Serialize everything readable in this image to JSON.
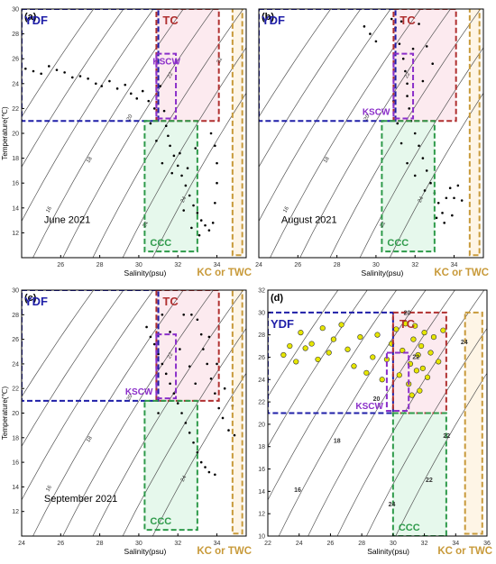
{
  "colors": {
    "ydf": "#1f1fa8",
    "tc": "#b03030",
    "tc_fill": "#fbe3ea",
    "kscw": "#8b2fc9",
    "ccc": "#2e9a4a",
    "ccc_fill": "#ddf5e6",
    "kc": "#c89a3a",
    "kc_fill": "#fdf1dd",
    "points": "#000000",
    "points_d": "#e6e600",
    "isopycnal": "#555555"
  },
  "chart_data": [
    {
      "panel": "(a)",
      "type": "scatter",
      "annotation": "June 2021",
      "xlabel": "Salinity(psu)",
      "ylabel": "Temperature(℃)",
      "xlim": [
        24,
        35.5
      ],
      "ylim": [
        10,
        30
      ],
      "xticks": [
        "26",
        "28",
        "30",
        "32",
        "34"
      ],
      "yticks": [
        "12",
        "14",
        "16",
        "18",
        "20",
        "22",
        "24",
        "26",
        "28",
        "30"
      ],
      "isopycnal_labels": [
        "16",
        "18",
        "20",
        "22",
        "24",
        "24",
        "22"
      ],
      "water_masses": [
        "YDF",
        "TC",
        "KSCW",
        "CCC",
        "KC or TWC"
      ],
      "points_description_values": [
        [
          24.2,
          25.2
        ],
        [
          24.6,
          25.0
        ],
        [
          25.0,
          24.8
        ],
        [
          25.4,
          25.4
        ],
        [
          25.8,
          25.1
        ],
        [
          26.2,
          24.9
        ],
        [
          26.6,
          24.5
        ],
        [
          27.0,
          24.6
        ],
        [
          27.4,
          24.4
        ],
        [
          27.8,
          24.0
        ],
        [
          28.1,
          23.8
        ],
        [
          28.5,
          24.2
        ],
        [
          28.9,
          23.6
        ],
        [
          29.3,
          23.9
        ],
        [
          29.6,
          23.2
        ],
        [
          29.9,
          22.8
        ],
        [
          30.2,
          23.4
        ],
        [
          30.5,
          22.6
        ],
        [
          30.8,
          22.0
        ],
        [
          31.1,
          23.8
        ],
        [
          31.3,
          21.8
        ],
        [
          31.4,
          20.6
        ],
        [
          31.5,
          19.8
        ],
        [
          31.6,
          19.0
        ],
        [
          31.8,
          18.2
        ],
        [
          32.0,
          17.4
        ],
        [
          32.2,
          16.6
        ],
        [
          32.4,
          15.8
        ],
        [
          32.6,
          15.0
        ],
        [
          32.8,
          14.2
        ],
        [
          33.0,
          13.6
        ],
        [
          33.2,
          13.0
        ],
        [
          33.4,
          12.6
        ],
        [
          33.6,
          12.2
        ],
        [
          33.8,
          12.8
        ],
        [
          33.9,
          14.4
        ],
        [
          34.0,
          16.0
        ],
        [
          34.0,
          17.6
        ],
        [
          33.9,
          19.0
        ],
        [
          33.7,
          20.0
        ],
        [
          32.9,
          18.8
        ],
        [
          32.5,
          17.2
        ],
        [
          32.1,
          18.4
        ],
        [
          31.7,
          16.8
        ],
        [
          31.2,
          17.6
        ],
        [
          30.9,
          19.4
        ],
        [
          30.6,
          20.8
        ],
        [
          32.3,
          13.8
        ],
        [
          32.7,
          12.4
        ],
        [
          33.1,
          11.8
        ]
      ]
    },
    {
      "panel": "(b)",
      "type": "scatter",
      "annotation": "August 2021",
      "xlabel": "Salinity(psu)",
      "xlim": [
        24,
        35.5
      ],
      "ylim": [
        10,
        30
      ],
      "xticks": [
        "24",
        "26",
        "28",
        "30",
        "32",
        "34"
      ],
      "isopycnal_labels": [
        "16",
        "18",
        "20",
        "22",
        "24",
        "22"
      ],
      "water_masses": [
        "YDF",
        "TC",
        "KSCW",
        "CCC",
        "KC or TWC"
      ],
      "points_description_values": [
        [
          29.4,
          28.6
        ],
        [
          29.7,
          28.0
        ],
        [
          30.0,
          27.4
        ],
        [
          30.8,
          29.2
        ],
        [
          31.0,
          28.5
        ],
        [
          31.2,
          27.2
        ],
        [
          31.4,
          26.0
        ],
        [
          31.5,
          25.0
        ],
        [
          31.6,
          24.0
        ],
        [
          31.6,
          23.0
        ],
        [
          31.7,
          22.0
        ],
        [
          31.8,
          21.0
        ],
        [
          32.0,
          20.0
        ],
        [
          32.2,
          19.0
        ],
        [
          32.4,
          18.0
        ],
        [
          32.6,
          17.0
        ],
        [
          32.8,
          16.0
        ],
        [
          33.0,
          15.2
        ],
        [
          33.2,
          14.4
        ],
        [
          33.4,
          13.6
        ],
        [
          33.6,
          14.8
        ],
        [
          33.8,
          15.6
        ],
        [
          34.0,
          14.8
        ],
        [
          34.2,
          15.8
        ],
        [
          34.4,
          14.6
        ],
        [
          32.2,
          28.8
        ],
        [
          32.6,
          27.0
        ],
        [
          32.9,
          25.6
        ],
        [
          32.4,
          24.2
        ],
        [
          31.9,
          26.8
        ],
        [
          31.3,
          29.0
        ],
        [
          30.9,
          22.6
        ],
        [
          31.1,
          20.8
        ],
        [
          31.3,
          19.2
        ],
        [
          31.6,
          17.6
        ],
        [
          32.0,
          16.6
        ],
        [
          32.5,
          15.4
        ],
        [
          33.1,
          13.2
        ],
        [
          33.5,
          12.8
        ],
        [
          33.9,
          13.4
        ]
      ]
    },
    {
      "panel": "(c)",
      "type": "scatter",
      "annotation": "September 2021",
      "xlabel": "Salinity(psu)",
      "ylabel": "Temperature(℃)",
      "xlim": [
        24,
        35.5
      ],
      "ylim": [
        10,
        30
      ],
      "xticks": [
        "24",
        "26",
        "28",
        "30",
        "32",
        "34"
      ],
      "yticks": [
        "12",
        "14",
        "16",
        "18",
        "20",
        "22",
        "24",
        "26",
        "28",
        "30"
      ],
      "isopycnal_labels": [
        "16",
        "18",
        "20",
        "22",
        "24"
      ],
      "water_masses": [
        "YDF",
        "TC",
        "KSCW",
        "CCC",
        "KC or TWC"
      ],
      "points_description_values": [
        [
          30.4,
          27.0
        ],
        [
          30.6,
          26.2
        ],
        [
          30.8,
          25.6
        ],
        [
          31.0,
          24.8
        ],
        [
          31.2,
          24.0
        ],
        [
          31.4,
          23.2
        ],
        [
          31.6,
          22.4
        ],
        [
          31.8,
          21.6
        ],
        [
          32.0,
          20.8
        ],
        [
          32.2,
          20.0
        ],
        [
          32.4,
          19.2
        ],
        [
          32.6,
          18.4
        ],
        [
          32.8,
          17.6
        ],
        [
          33.0,
          16.8
        ],
        [
          33.2,
          16.0
        ],
        [
          33.4,
          15.6
        ],
        [
          33.6,
          15.2
        ],
        [
          33.9,
          15.0
        ],
        [
          32.3,
          28.0
        ],
        [
          32.7,
          28.0
        ],
        [
          33.0,
          27.6
        ],
        [
          33.2,
          26.4
        ],
        [
          33.3,
          25.2
        ],
        [
          33.5,
          24.0
        ],
        [
          33.7,
          22.8
        ],
        [
          33.9,
          21.6
        ],
        [
          34.1,
          20.4
        ],
        [
          34.3,
          19.6
        ],
        [
          34.6,
          18.6
        ],
        [
          34.9,
          18.2
        ],
        [
          32.9,
          22.4
        ],
        [
          32.6,
          23.8
        ],
        [
          32.1,
          25.2
        ],
        [
          31.6,
          26.6
        ],
        [
          31.2,
          28.0
        ],
        [
          33.6,
          26.2
        ],
        [
          34.0,
          24.0
        ],
        [
          34.4,
          22.0
        ],
        [
          34.8,
          20.6
        ],
        [
          31.0,
          20.0
        ]
      ]
    },
    {
      "panel": "(d)",
      "type": "scatter",
      "xlabel": "Salinity(psu)",
      "xlim": [
        22,
        36
      ],
      "ylim": [
        10,
        32
      ],
      "xticks": [
        "22",
        "24",
        "26",
        "28",
        "30",
        "32",
        "34",
        "36"
      ],
      "yticks": [
        "10",
        "12",
        "14",
        "16",
        "18",
        "20",
        "22",
        "24",
        "26",
        "28",
        "30",
        "32"
      ],
      "isopycnal_labels": [
        "16",
        "18",
        "20",
        "22",
        "22",
        "24",
        "24",
        "20",
        "22"
      ],
      "water_masses": [
        "YDF",
        "TC",
        "KSCW",
        "CCC",
        "KC or TWC"
      ],
      "points_description_values": [
        [
          23.0,
          26.2
        ],
        [
          23.4,
          27.0
        ],
        [
          23.8,
          25.6
        ],
        [
          24.1,
          28.2
        ],
        [
          24.4,
          26.8
        ],
        [
          24.8,
          27.2
        ],
        [
          25.2,
          25.8
        ],
        [
          25.5,
          28.6
        ],
        [
          25.9,
          26.4
        ],
        [
          26.2,
          27.6
        ],
        [
          26.7,
          28.9
        ],
        [
          27.1,
          26.7
        ],
        [
          27.5,
          25.2
        ],
        [
          27.9,
          27.8
        ],
        [
          28.3,
          24.6
        ],
        [
          28.7,
          26.0
        ],
        [
          29.0,
          28.0
        ],
        [
          29.3,
          24.0
        ],
        [
          29.6,
          25.8
        ],
        [
          29.9,
          27.2
        ],
        [
          30.2,
          28.5
        ],
        [
          30.4,
          24.4
        ],
        [
          30.6,
          26.6
        ],
        [
          30.8,
          29.0
        ],
        [
          31.0,
          23.6
        ],
        [
          31.1,
          25.4
        ],
        [
          31.3,
          27.6
        ],
        [
          31.4,
          28.8
        ],
        [
          31.5,
          24.8
        ],
        [
          31.6,
          26.2
        ],
        [
          31.7,
          23.0
        ],
        [
          31.8,
          27.0
        ],
        [
          31.9,
          25.0
        ],
        [
          32.0,
          28.2
        ],
        [
          32.2,
          24.2
        ],
        [
          32.4,
          26.4
        ],
        [
          32.6,
          27.8
        ],
        [
          32.9,
          25.6
        ],
        [
          33.2,
          28.4
        ],
        [
          31.2,
          22.6
        ]
      ]
    }
  ]
}
